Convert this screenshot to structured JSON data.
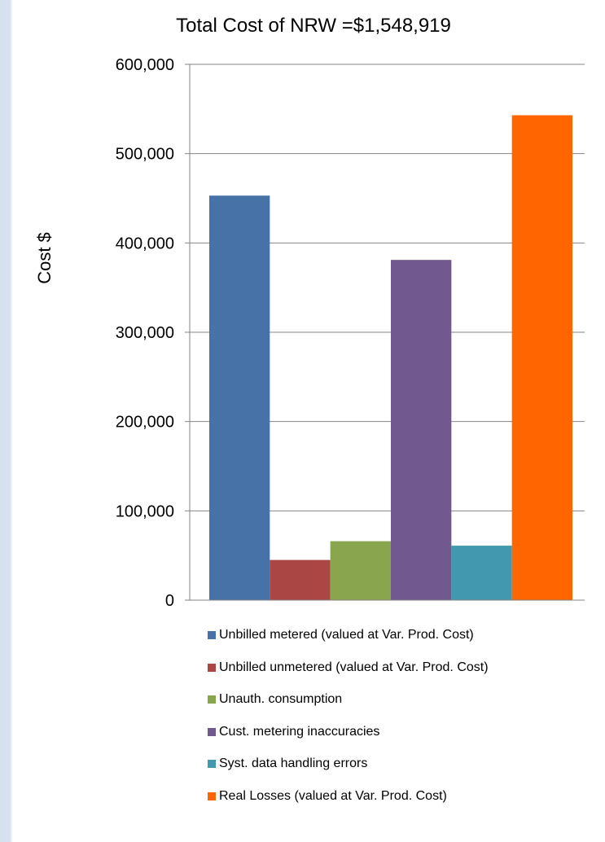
{
  "chart_data": {
    "type": "bar",
    "title": "Total Cost of NRW =$1,548,919",
    "xlabel": "",
    "ylabel": "Cost $",
    "ylim": [
      0,
      600000
    ],
    "yticks": [
      0,
      100000,
      200000,
      300000,
      400000,
      500000,
      600000
    ],
    "ytick_labels": [
      "0",
      "100,000",
      "200,000",
      "300,000",
      "400,000",
      "500,000",
      "600,000"
    ],
    "grid": true,
    "legend_position": "bottom",
    "series": [
      {
        "name": "Unbilled metered (valued at Var. Prod. Cost)",
        "values": [
          453000
        ],
        "color": "#4672a8"
      },
      {
        "name": "Unbilled unmetered (valued at Var. Prod. Cost)",
        "values": [
          45000
        ],
        "color": "#aa4643"
      },
      {
        "name": "Unauth. consumption",
        "values": [
          66000
        ],
        "color": "#89a54e"
      },
      {
        "name": "Cust. metering inaccuracies",
        "values": [
          381000
        ],
        "color": "#71588f"
      },
      {
        "name": "Syst. data handling errors",
        "values": [
          61000
        ],
        "color": "#4198af"
      },
      {
        "name": "Real Losses (valued at Var. Prod. Cost)",
        "values": [
          543000
        ],
        "color": "#ff6600"
      }
    ]
  }
}
